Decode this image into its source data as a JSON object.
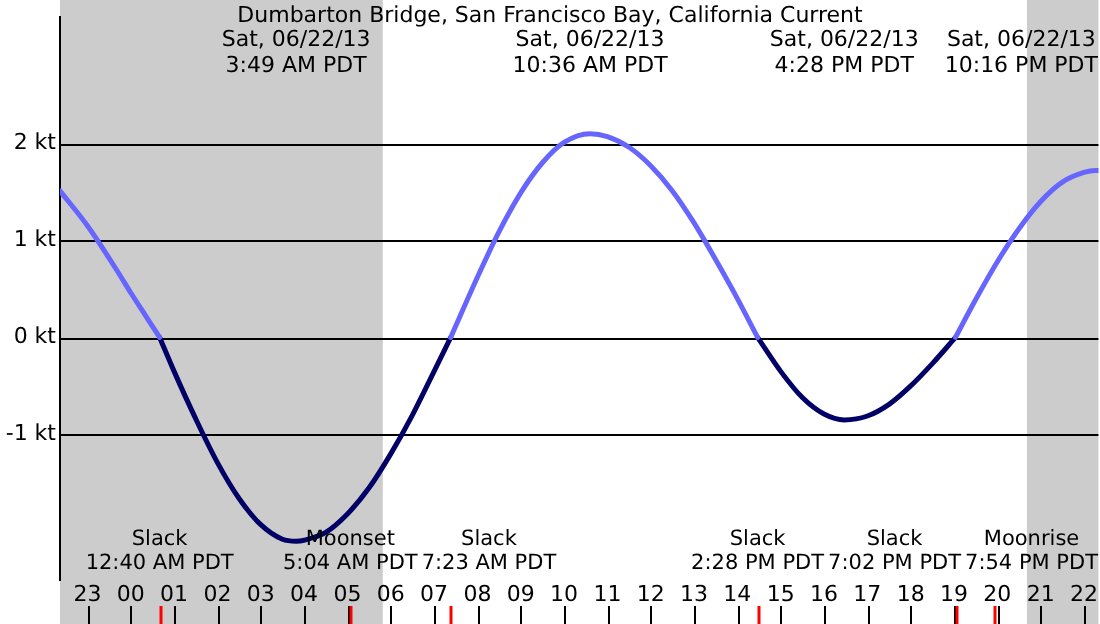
{
  "chart_data": {
    "type": "line",
    "title": "Dumbarton Bridge, San Francisco Bay, California Current",
    "x": [
      "--06-21T22:22",
      "--06-21T23:00",
      "--06-21T23:40",
      "--06-22T00:00",
      "--06-22T00:20",
      "--06-22T00:40",
      "--06-22T01:00",
      "--06-22T01:30",
      "--06-22T02:00",
      "--06-22T02:30",
      "--06-22T03:00",
      "--06-22T03:30",
      "--06-22T03:49",
      "--06-22T04:00",
      "--06-22T04:30",
      "--06-22T05:00",
      "--06-22T05:30",
      "--06-22T06:00",
      "--06-22T06:30",
      "--06-22T07:00",
      "--06-22T07:23",
      "--06-22T08:00",
      "--06-22T08:30",
      "--06-22T09:00",
      "--06-22T09:30",
      "--06-22T10:00",
      "--06-22T10:36",
      "--06-22T11:00",
      "--06-22T11:30",
      "--06-22T12:00",
      "--06-22T12:30",
      "--06-22T13:00",
      "--06-22T13:30",
      "--06-22T14:00",
      "--06-22T14:28",
      "--06-22T15:00",
      "--06-22T15:30",
      "--06-22T16:00",
      "--06-22T16:28",
      "--06-22T17:00",
      "--06-22T17:30",
      "--06-22T18:00",
      "--06-22T18:30",
      "--06-22T19:02",
      "--06-22T19:30",
      "--06-22T20:00",
      "--06-22T20:30",
      "--06-22T21:00",
      "--06-22T21:30",
      "--06-22T22:00",
      "--06-22T22:16",
      "--06-22T22:20"
    ],
    "series": [
      {
        "color": "#6666ff",
        "values": [
          1.51,
          1.15,
          0.7,
          0.46,
          0.23,
          0,
          null,
          null,
          null,
          null,
          null,
          null,
          null,
          null,
          null,
          null,
          null,
          null,
          null,
          null,
          0,
          0.62,
          1.09,
          1.49,
          1.8,
          2.01,
          2.1,
          2.07,
          1.96,
          1.77,
          1.51,
          1.18,
          0.8,
          0.4,
          0,
          null,
          null,
          null,
          null,
          null,
          null,
          null,
          null,
          0,
          0.39,
          0.78,
          1.12,
          1.4,
          1.6,
          1.7,
          1.72,
          1.72
        ]
      },
      {
        "color": "#000066",
        "values": [
          null,
          null,
          null,
          null,
          null,
          0,
          -0.35,
          -0.84,
          -1.29,
          -1.66,
          -1.93,
          -2.08,
          -2.1,
          -2.09,
          -2.01,
          -1.82,
          -1.55,
          -1.2,
          -0.8,
          -0.35,
          0,
          null,
          null,
          null,
          null,
          null,
          null,
          null,
          null,
          null,
          null,
          null,
          null,
          null,
          0,
          -0.35,
          -0.62,
          -0.79,
          -0.85,
          -0.81,
          -0.69,
          -0.5,
          -0.27,
          0,
          null,
          null,
          null,
          null,
          null,
          null,
          null,
          null
        ]
      }
    ],
    "xlim": [
      "--06-21T22:22",
      "--06-22T22:20"
    ],
    "xticks": [
      {
        "value": "--06-21T23:00",
        "label": "23"
      },
      {
        "value": "--06-22T00:00",
        "label": "00"
      },
      {
        "value": "--06-22T01:00",
        "label": "01"
      },
      {
        "value": "--06-22T02:00",
        "label": "02"
      },
      {
        "value": "--06-22T03:00",
        "label": "03"
      },
      {
        "value": "--06-22T04:00",
        "label": "04"
      },
      {
        "value": "--06-22T05:00",
        "label": "05"
      },
      {
        "value": "--06-22T06:00",
        "label": "06"
      },
      {
        "value": "--06-22T07:00",
        "label": "07"
      },
      {
        "value": "--06-22T08:00",
        "label": "08"
      },
      {
        "value": "--06-22T09:00",
        "label": "09"
      },
      {
        "value": "--06-22T10:00",
        "label": "10"
      },
      {
        "value": "--06-22T11:00",
        "label": "11"
      },
      {
        "value": "--06-22T12:00",
        "label": "12"
      },
      {
        "value": "--06-22T13:00",
        "label": "13"
      },
      {
        "value": "--06-22T14:00",
        "label": "14"
      },
      {
        "value": "--06-22T15:00",
        "label": "15"
      },
      {
        "value": "--06-22T16:00",
        "label": "16"
      },
      {
        "value": "--06-22T17:00",
        "label": "17"
      },
      {
        "value": "--06-22T18:00",
        "label": "18"
      },
      {
        "value": "--06-22T19:00",
        "label": "19"
      },
      {
        "value": "--06-22T20:00",
        "label": "20"
      },
      {
        "value": "--06-22T21:00",
        "label": "21"
      },
      {
        "value": "--06-22T22:00",
        "label": "22"
      }
    ],
    "ylim": [
      -2.5,
      3.3
    ],
    "yticks": [
      {
        "value": -1,
        "label": "-1 kt"
      },
      {
        "value": 0,
        "label": "0 kt"
      },
      {
        "value": 1,
        "label": "1 kt"
      },
      {
        "value": 2,
        "label": "2 kt"
      }
    ],
    "grid": "y",
    "legend": false,
    "marker": "none",
    "line_style": "solid",
    "bands": [
      {
        "axis": "x",
        "from": "--06-21T22:22",
        "to": "--06-22T05:49",
        "color": "#cccccc"
      },
      {
        "axis": "x",
        "from": "--06-22T20:41",
        "to": "--06-22T22:20",
        "color": "#cccccc"
      }
    ],
    "ref_lines": [
      {
        "axis": "x",
        "value": "--06-22T00:40",
        "label": "Slack\n12:40 AM PDT",
        "color": "#ff0000"
      },
      {
        "axis": "x",
        "value": "--06-22T05:04",
        "label": "Moonset\n5:04 AM PDT",
        "color": "#ff0000"
      },
      {
        "axis": "x",
        "value": "--06-22T07:23",
        "label": "Slack\n7:23 AM PDT",
        "color": "#ff0000"
      },
      {
        "axis": "x",
        "value": "--06-22T14:28",
        "label": "Slack\n2:28 PM PDT",
        "color": "#ff0000"
      },
      {
        "axis": "x",
        "value": "--06-22T19:02",
        "label": "Slack\n7:02 PM PDT",
        "color": "#ff0000"
      },
      {
        "axis": "x",
        "value": "--06-22T19:54",
        "label": "Moonrise\n7:54 PM PDT",
        "color": "#ff0000"
      }
    ],
    "annotations": [
      "Sat, 06/22/13\n3:49 AM PDT",
      "Sat, 06/22/13\n10:36 AM PDT",
      "Sat, 06/22/13\n4:28 PM PDT",
      "Sat, 06/22/13\n10:16 PM PDT"
    ]
  }
}
